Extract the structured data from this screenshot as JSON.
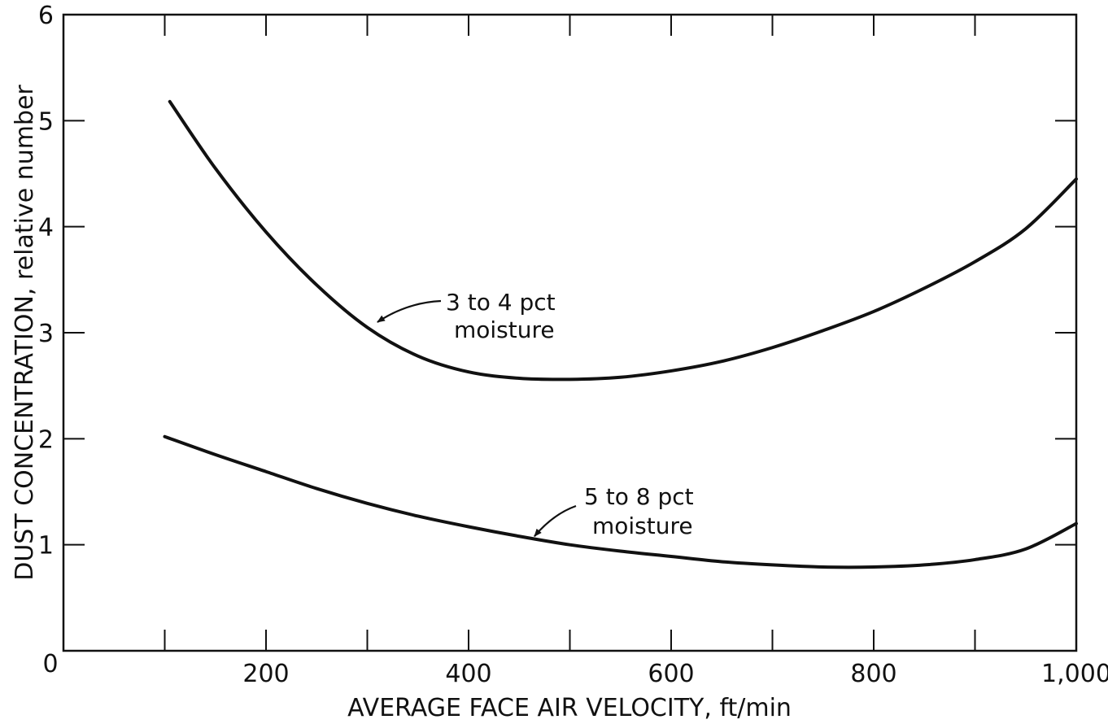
{
  "chart_data": {
    "type": "line",
    "xlabel": "AVERAGE FACE AIR VELOCITY, ft/min",
    "ylabel": "DUST CONCENTRATION, relative number",
    "xlim": [
      0,
      1000
    ],
    "ylim": [
      0,
      6
    ],
    "x_ticks": [
      200,
      400,
      600,
      800,
      1000
    ],
    "x_tick_labels": [
      "200",
      "400",
      "600",
      "800",
      "1,000"
    ],
    "x_minor_ticks": [
      100,
      300,
      500,
      700,
      900
    ],
    "y_ticks": [
      0,
      1,
      2,
      3,
      4,
      5,
      6
    ],
    "y_tick_labels": [
      "0",
      "1",
      "2",
      "3",
      "4",
      "5",
      "6"
    ],
    "origin_x_label": "0",
    "grid": false,
    "legend": "none",
    "series": [
      {
        "x": [
          105,
          150,
          200,
          250,
          300,
          350,
          400,
          450,
          500,
          550,
          600,
          650,
          700,
          750,
          800,
          850,
          900,
          950,
          1000
        ],
        "values": [
          5.18,
          4.55,
          3.95,
          3.45,
          3.05,
          2.78,
          2.63,
          2.57,
          2.56,
          2.58,
          2.64,
          2.73,
          2.86,
          3.02,
          3.2,
          3.42,
          3.67,
          3.98,
          4.45
        ]
      },
      {
        "x": [
          100,
          150,
          200,
          250,
          300,
          350,
          400,
          450,
          500,
          550,
          600,
          650,
          700,
          750,
          800,
          850,
          900,
          950,
          1000
        ],
        "values": [
          2.02,
          1.85,
          1.69,
          1.53,
          1.39,
          1.27,
          1.17,
          1.08,
          1.0,
          0.94,
          0.89,
          0.84,
          0.81,
          0.79,
          0.79,
          0.81,
          0.86,
          0.96,
          1.2
        ]
      }
    ],
    "annotations": [
      {
        "lines": [
          "3 to 4 pct",
          "moisture"
        ],
        "series": 0,
        "points_to_x": 310,
        "points_to_y": 3.1
      },
      {
        "lines": [
          "5 to 8 pct",
          "moisture"
        ],
        "series": 1,
        "points_to_x": 465,
        "points_to_y": 1.08
      }
    ]
  }
}
